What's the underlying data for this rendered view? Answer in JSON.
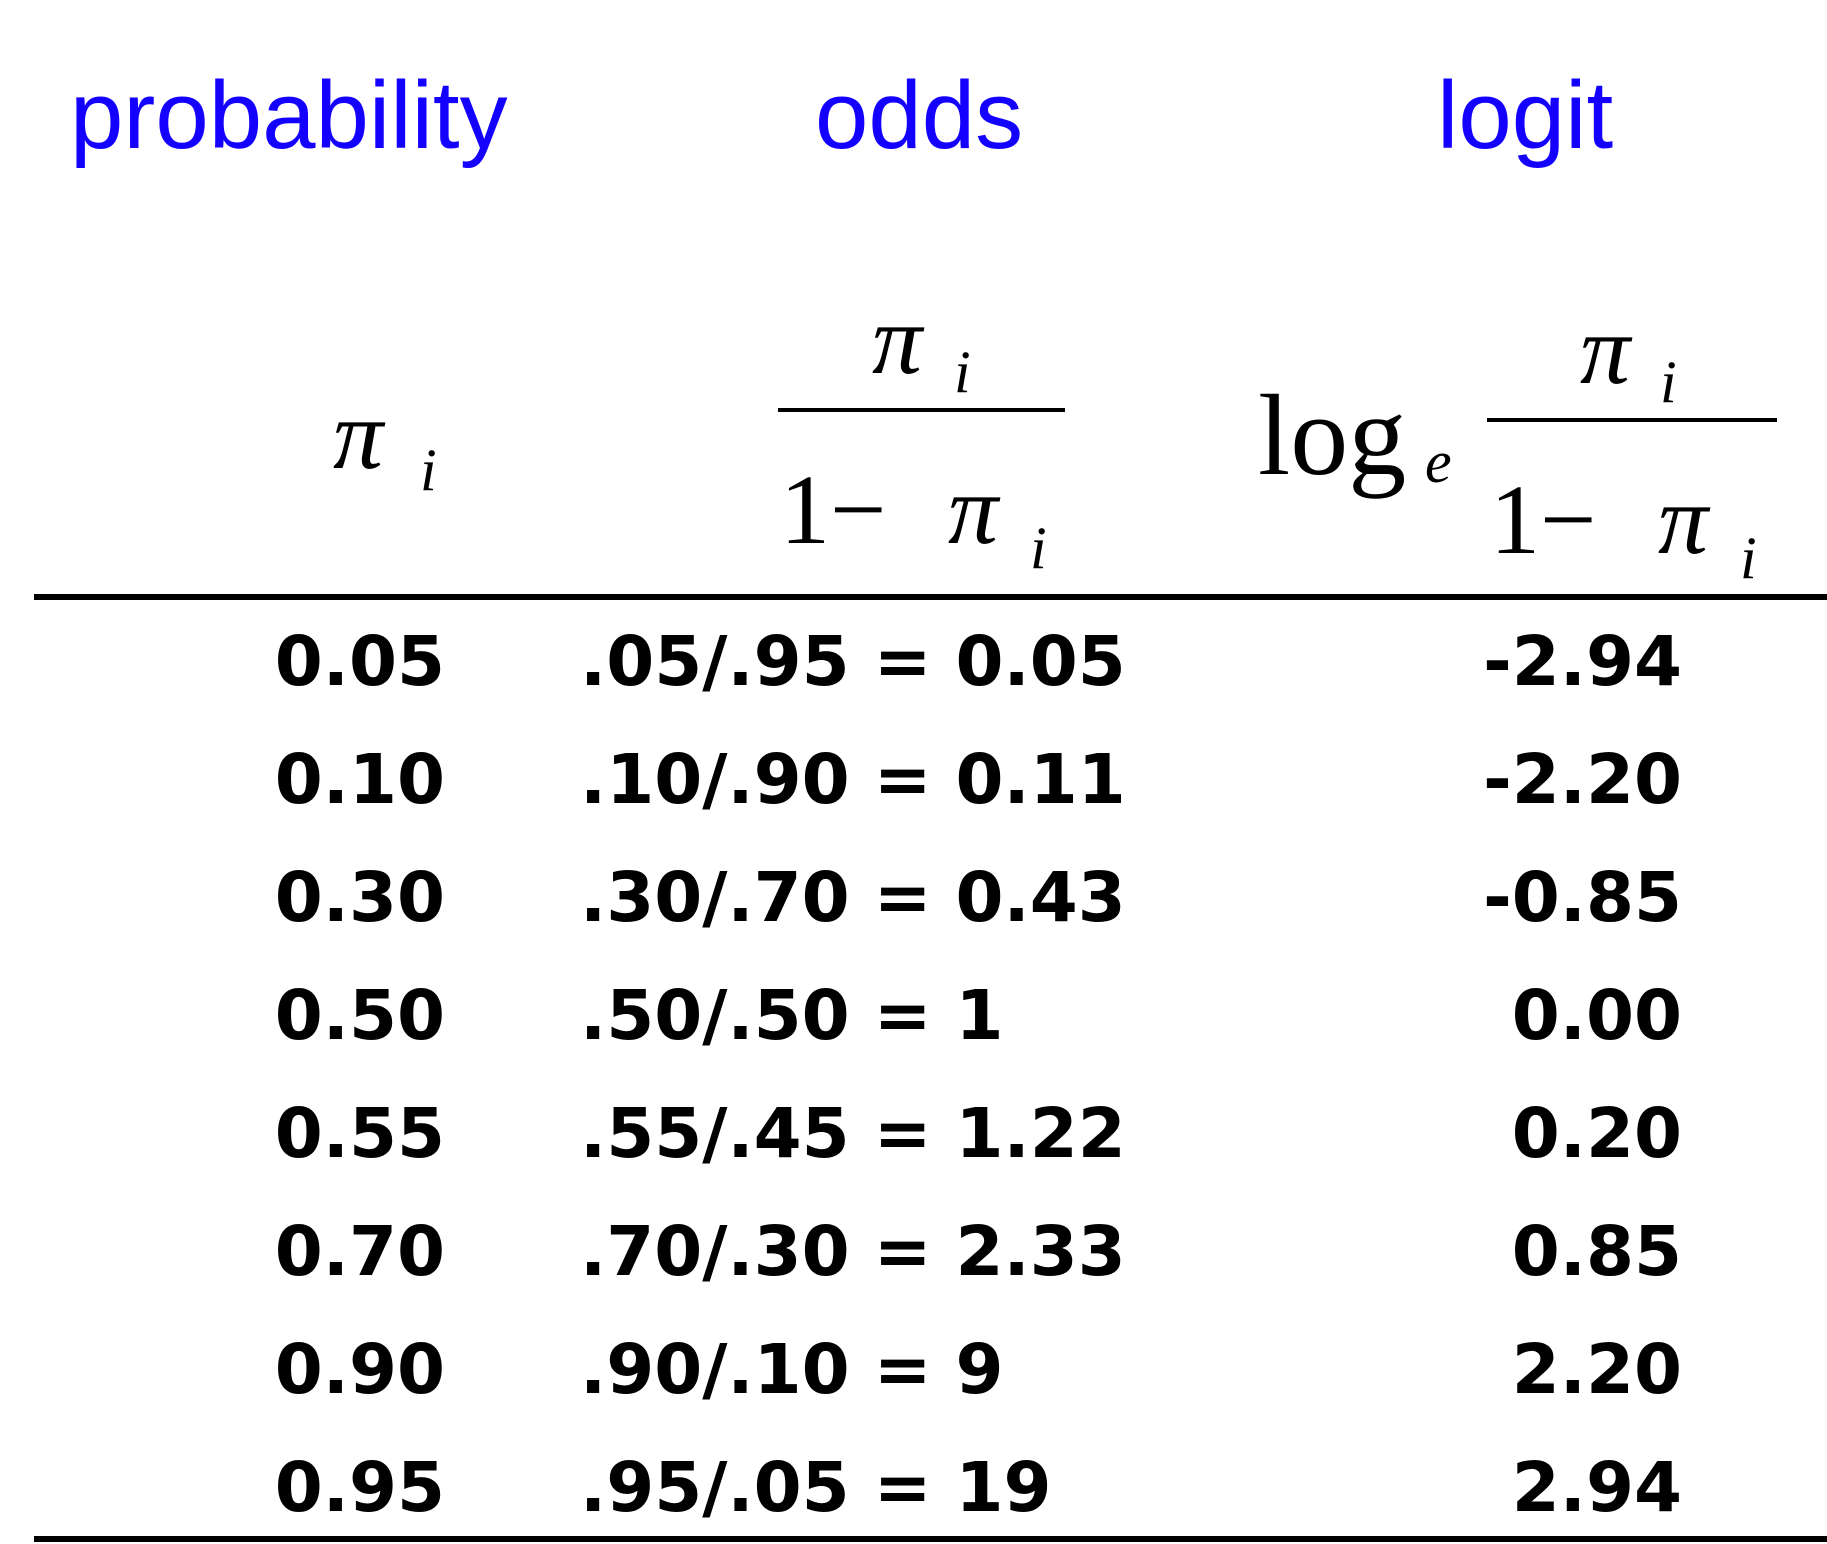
{
  "headers": {
    "probability": "probability",
    "odds": "odds",
    "logit": "logit",
    "color": "#1400ff"
  },
  "formulas": {
    "pi": "π",
    "sub_i": "i",
    "one_minus": "1−",
    "log": "log",
    "base": "e"
  },
  "rows": [
    {
      "p": "0.05",
      "odds": ".05/.95 = 0.05",
      "logit": "-2.94"
    },
    {
      "p": "0.10",
      "odds": ".10/.90 = 0.11",
      "logit": "-2.20"
    },
    {
      "p": "0.30",
      "odds": ".30/.70 = 0.43",
      "logit": "-0.85"
    },
    {
      "p": "0.50",
      "odds": ".50/.50 = 1",
      "logit": "0.00"
    },
    {
      "p": "0.55",
      "odds": ".55/.45 = 1.22",
      "logit": "0.20"
    },
    {
      "p": "0.70",
      "odds": ".70/.30 = 2.33",
      "logit": "0.85"
    },
    {
      "p": "0.90",
      "odds": ".90/.10 = 9",
      "logit": "2.20"
    },
    {
      "p": "0.95",
      "odds": ".95/.05 = 19",
      "logit": "2.94"
    }
  ]
}
